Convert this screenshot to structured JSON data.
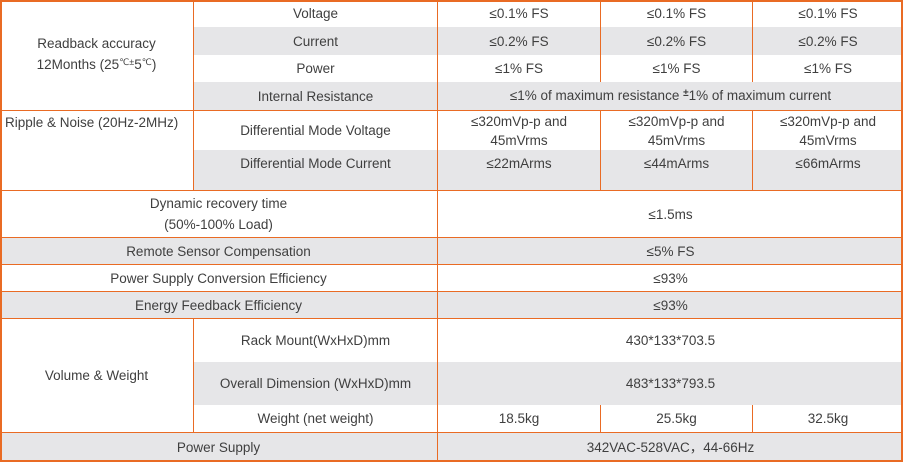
{
  "colors": {
    "border": "#E96B24",
    "row_shade": "#E6E6E8",
    "text": "#3F3F3F"
  },
  "readback": {
    "title_line1": "Readback accuracy",
    "title_line2": {
      "t1": "12Months (25",
      "sup1": "℃±",
      "t2": "5",
      "sup2": "℃",
      "t3": ")"
    },
    "voltage": {
      "label": "Voltage",
      "values": [
        "≤0.1% FS",
        "≤0.1% FS",
        "≤0.1% FS"
      ]
    },
    "current": {
      "label": "Current",
      "values": [
        "≤0.2% FS",
        "≤0.2% FS",
        "≤0.2% FS"
      ]
    },
    "power": {
      "label": "Power",
      "values": [
        "≤1% FS",
        "≤1% FS",
        "≤1% FS"
      ]
    },
    "internal_resistance": {
      "label": "Internal Resistance",
      "value": {
        "t1": "≤1% of maximum resistance ",
        "sup": "±",
        "t2": "1% of maximum current"
      }
    }
  },
  "ripple": {
    "title": "Ripple & Noise (20Hz-2MHz)",
    "dm_voltage": {
      "label": "Differential Mode Voltage",
      "values": [
        "≤320mVp-p and 45mVrms",
        "≤320mVp-p and 45mVrms",
        "≤320mVp-p and 45mVrms"
      ]
    },
    "dm_current": {
      "label": "Differential Mode Current",
      "values": [
        "≤22mArms",
        "≤44mArms",
        "≤66mArms"
      ]
    }
  },
  "dynamic_recovery": {
    "label_line1": "Dynamic recovery time",
    "label_line2": "(50%-100% Load)",
    "value": "≤1.5ms"
  },
  "remote_sensor": {
    "label": "Remote Sensor Compensation",
    "value": "≤5% FS"
  },
  "conversion_efficiency": {
    "label": "Power Supply Conversion Efficiency",
    "value": "≤93%"
  },
  "feedback_efficiency": {
    "label": "Energy Feedback Efficiency",
    "value": "≤93%"
  },
  "volume_weight": {
    "title": "Volume & Weight",
    "rack_mount": {
      "label": "Rack Mount(WxHxD)mm",
      "value": "430*133*703.5"
    },
    "overall_dimension": {
      "label": "Overall Dimension (WxHxD)mm",
      "value": "483*133*793.5"
    },
    "weight": {
      "label": "Weight (net weight)",
      "values": [
        "18.5kg",
        "25.5kg",
        "32.5kg"
      ]
    }
  },
  "power_supply": {
    "label": "Power Supply",
    "value": "342VAC-528VAC，44-66Hz"
  }
}
